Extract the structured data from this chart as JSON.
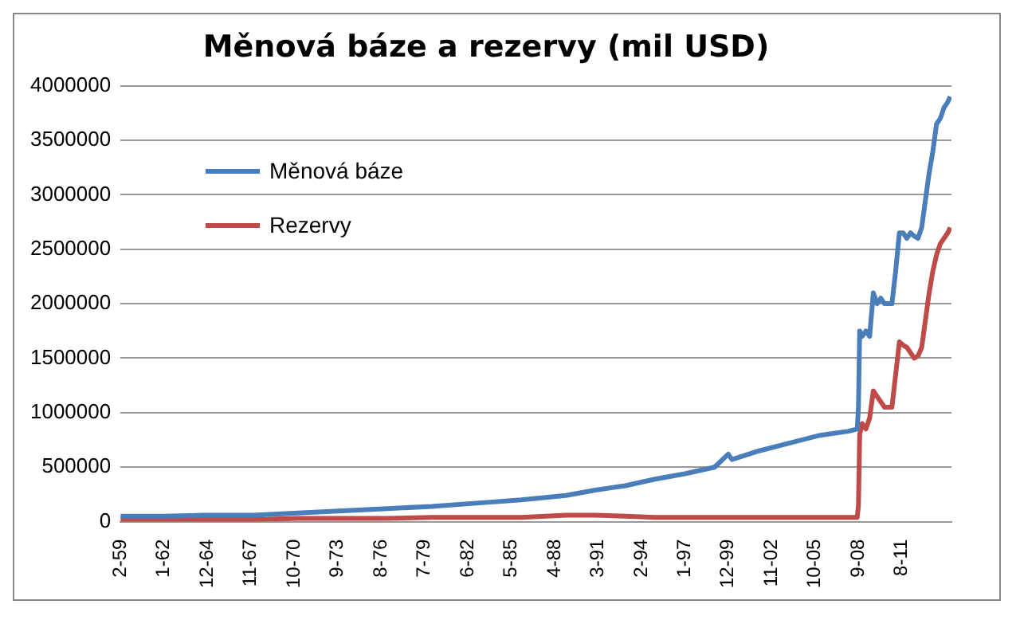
{
  "chart_data": {
    "type": "line",
    "title": "Měnová báze a rezervy (mil USD)",
    "x": [
      "1959-02",
      "1962-01",
      "1965-01",
      "1968-01",
      "1971-01",
      "1974-01",
      "1977-01",
      "1980-01",
      "1983-01",
      "1986-01",
      "1989-01",
      "1991-01",
      "1993-01",
      "1995-01",
      "1997-01",
      "1999-01",
      "1999-12",
      "2000-03",
      "2002-01",
      "2004-01",
      "2006-01",
      "2008-01",
      "2008-08",
      "2008-09",
      "2008-10",
      "2008-12",
      "2009-03",
      "2009-06",
      "2009-09",
      "2009-12",
      "2010-03",
      "2010-06",
      "2010-09",
      "2010-12",
      "2011-03",
      "2011-06",
      "2011-09",
      "2011-12",
      "2012-03",
      "2012-06",
      "2012-09",
      "2012-12",
      "2013-03",
      "2013-06",
      "2013-09",
      "2013-12",
      "2014-03",
      "2014-06",
      "2014-09",
      "2014-11"
    ],
    "series": [
      {
        "name": "Měnová báze",
        "color": "#4a7ebb",
        "values": [
          50000,
          50000,
          60000,
          60000,
          80000,
          100000,
          120000,
          140000,
          170000,
          200000,
          240000,
          290000,
          330000,
          390000,
          440000,
          500000,
          620000,
          570000,
          650000,
          720000,
          790000,
          830000,
          850000,
          1050000,
          1750000,
          1700000,
          1750000,
          1700000,
          2100000,
          2000000,
          2050000,
          2000000,
          2000000,
          2000000,
          2300000,
          2650000,
          2650000,
          2600000,
          2650000,
          2620000,
          2600000,
          2700000,
          2950000,
          3200000,
          3400000,
          3650000,
          3700000,
          3800000,
          3850000,
          3900000
        ]
      },
      {
        "name": "Rezervy",
        "color": "#be4b48",
        "values": [
          20000,
          20000,
          20000,
          20000,
          30000,
          30000,
          30000,
          40000,
          40000,
          40000,
          60000,
          60000,
          50000,
          40000,
          40000,
          40000,
          40000,
          40000,
          40000,
          40000,
          40000,
          40000,
          40000,
          150000,
          800000,
          900000,
          850000,
          950000,
          1200000,
          1150000,
          1100000,
          1050000,
          1050000,
          1050000,
          1350000,
          1650000,
          1620000,
          1600000,
          1550000,
          1500000,
          1520000,
          1600000,
          1850000,
          2100000,
          2300000,
          2450000,
          2550000,
          2600000,
          2650000,
          2700000
        ]
      }
    ],
    "ylim": [
      0,
      4000000
    ],
    "yticks": [
      0,
      500000,
      1000000,
      1500000,
      2000000,
      2500000,
      3000000,
      3500000,
      4000000
    ],
    "xlim": [
      "1959-02",
      "2014-12"
    ],
    "xticks": [
      {
        "value": "1959-02",
        "label": "2-59"
      },
      {
        "value": "1962-01",
        "label": "1-62"
      },
      {
        "value": "1964-12",
        "label": "12-64"
      },
      {
        "value": "1967-11",
        "label": "11-67"
      },
      {
        "value": "1970-10",
        "label": "10-70"
      },
      {
        "value": "1973-09",
        "label": "9-73"
      },
      {
        "value": "1976-08",
        "label": "8-76"
      },
      {
        "value": "1979-07",
        "label": "7-79"
      },
      {
        "value": "1982-06",
        "label": "6-82"
      },
      {
        "value": "1985-05",
        "label": "5-85"
      },
      {
        "value": "1988-04",
        "label": "4-88"
      },
      {
        "value": "1991-03",
        "label": "3-91"
      },
      {
        "value": "1994-02",
        "label": "2-94"
      },
      {
        "value": "1997-01",
        "label": "1-97"
      },
      {
        "value": "1999-12",
        "label": "12-99"
      },
      {
        "value": "2002-11",
        "label": "11-02"
      },
      {
        "value": "2005-10",
        "label": "10-05"
      },
      {
        "value": "2008-09",
        "label": "9-08"
      },
      {
        "value": "2011-08",
        "label": "8-11"
      }
    ],
    "grid": "y",
    "legend": "top left",
    "marker": "none",
    "line_style": "solid"
  }
}
